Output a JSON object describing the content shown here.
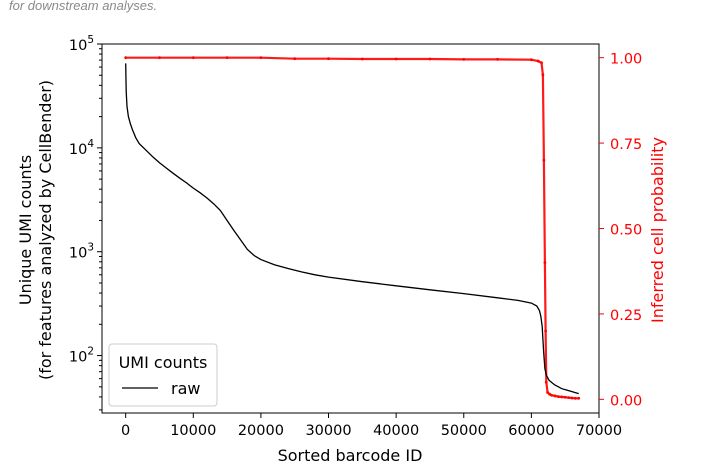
{
  "caption": "for downstream analyses.",
  "chart_data": {
    "type": "line",
    "xlabel": "Sorted barcode ID",
    "ylabel_line1": "Unique UMI counts",
    "ylabel_line2": "(for features analyzed by CellBender)",
    "y2label": "Inferred cell probability",
    "xlim": [
      -3500,
      70000
    ],
    "ylim": [
      28,
      100000
    ],
    "yscale": "log",
    "y2lim": [
      -0.04,
      1.04
    ],
    "xticks": [
      0,
      10000,
      20000,
      30000,
      40000,
      50000,
      60000,
      70000
    ],
    "xtick_labels": [
      "0",
      "10000",
      "20000",
      "30000",
      "40000",
      "50000",
      "60000",
      "70000"
    ],
    "yticks": [
      100,
      1000,
      10000,
      100000
    ],
    "ytick_bases": [
      "10",
      "10",
      "10",
      "10"
    ],
    "ytick_exps": [
      "2",
      "3",
      "4",
      "5"
    ],
    "y2ticks": [
      0,
      0.25,
      0.5,
      0.75,
      1.0
    ],
    "y2tick_labels": [
      "0.00",
      "0.25",
      "0.50",
      "0.75",
      "1.00"
    ],
    "colors": {
      "raw": "#000000",
      "probability": "#ff0000",
      "right_axis": "#ff0000"
    },
    "legend": {
      "title": "UMI counts",
      "entries": [
        "raw"
      ],
      "placement": "lower left"
    },
    "series": [
      {
        "name": "raw",
        "axis": "left",
        "x": [
          0,
          30,
          80,
          200,
          400,
          700,
          1000,
          1500,
          2000,
          3000,
          4000,
          5000,
          6000,
          7000,
          8000,
          9000,
          10000,
          11000,
          12000,
          13000,
          14000,
          15000,
          16000,
          17000,
          18000,
          19000,
          20000,
          22000,
          24000,
          26000,
          28000,
          30000,
          35000,
          40000,
          45000,
          50000,
          55000,
          58000,
          60000,
          60800,
          61200,
          61400,
          61600,
          61800,
          62000,
          62200,
          62600,
          63000,
          63500,
          64000,
          64500,
          65000,
          65500,
          66000,
          66500,
          67000
        ],
        "y": [
          65000,
          50000,
          35000,
          25000,
          20000,
          17000,
          15000,
          12500,
          11000,
          9500,
          8200,
          7200,
          6400,
          5700,
          5100,
          4600,
          4100,
          3700,
          3300,
          2900,
          2500,
          2000,
          1600,
          1300,
          1050,
          920,
          840,
          750,
          690,
          640,
          600,
          570,
          515,
          470,
          430,
          395,
          360,
          340,
          320,
          300,
          270,
          240,
          190,
          110,
          75,
          65,
          58,
          55,
          52,
          50,
          48,
          47,
          46,
          45,
          44,
          43
        ]
      },
      {
        "name": "",
        "axis": "right",
        "marker": "points",
        "x": [
          0,
          5000,
          10000,
          15000,
          20000,
          25000,
          30000,
          35000,
          40000,
          45000,
          50000,
          55000,
          60000,
          61000,
          61500,
          61700,
          61850,
          62000,
          62100,
          62200,
          62400,
          62700,
          63000,
          63500,
          64000,
          64500,
          65000,
          65500,
          66000,
          66500,
          67000
        ],
        "y": [
          1.0,
          1.0,
          1.0,
          1.0,
          1.0,
          0.997,
          0.997,
          0.996,
          0.996,
          0.996,
          0.995,
          0.995,
          0.994,
          0.99,
          0.985,
          0.95,
          0.7,
          0.4,
          0.2,
          0.05,
          0.02,
          0.015,
          0.012,
          0.01,
          0.008,
          0.007,
          0.006,
          0.005,
          0.004,
          0.003,
          0.003
        ]
      }
    ]
  }
}
